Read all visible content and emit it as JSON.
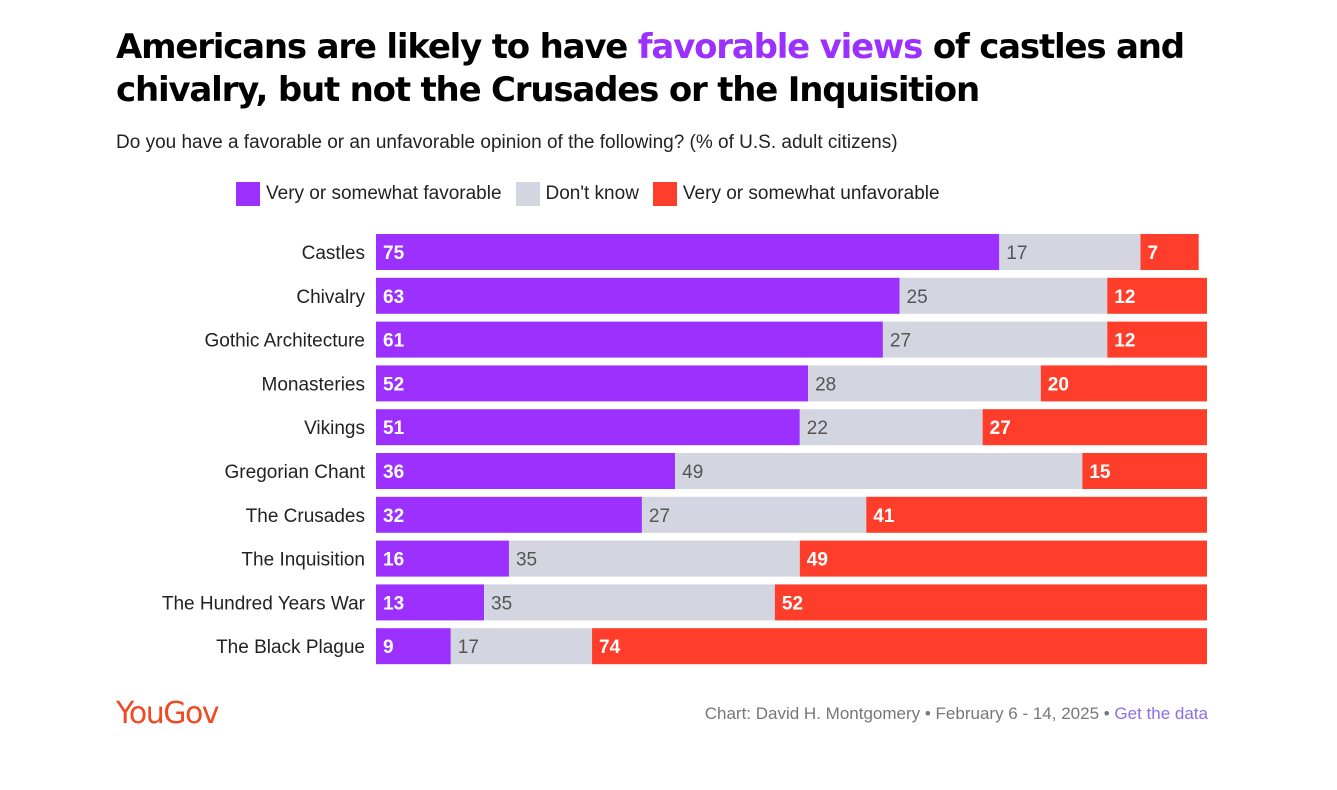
{
  "header": {
    "title_before": "Americans are likely to have ",
    "title_highlight": "favorable views",
    "title_after": " of castles and chivalry, but not the Crusades or the Inquisition",
    "subtitle": "Do you have a favorable or an unfavorable opinion of the following? (% of U.S. adult citizens)"
  },
  "colors": {
    "favorable": "#9b30ff",
    "dont_know": "#d3d6e0",
    "unfavorable": "#fe3d2a",
    "highlight": "#9b30ff",
    "brand": "#f04923"
  },
  "chart_data": {
    "type": "bar",
    "orientation": "horizontal",
    "stacked": true,
    "categories": [
      "Castles",
      "Chivalry",
      "Gothic Architecture",
      "Monasteries",
      "Vikings",
      "Gregorian Chant",
      "The Crusades",
      "The Inquisition",
      "The Hundred Years War",
      "The Black Plague"
    ],
    "series": [
      {
        "name": "Very or somewhat favorable",
        "values": [
          75,
          63,
          61,
          52,
          51,
          36,
          32,
          16,
          13,
          9
        ]
      },
      {
        "name": "Don't know",
        "values": [
          17,
          25,
          27,
          28,
          22,
          49,
          27,
          35,
          35,
          17
        ]
      },
      {
        "name": "Very or somewhat unfavorable",
        "values": [
          7,
          12,
          12,
          20,
          27,
          15,
          41,
          49,
          52,
          74
        ]
      }
    ],
    "xlim": [
      0,
      100
    ],
    "grid": false,
    "legend_position": "top"
  },
  "footer": {
    "logo": "YouGov",
    "credit": "Chart: David H. Montgomery • February 6 - 14, 2025 • ",
    "link": "Get the data"
  }
}
